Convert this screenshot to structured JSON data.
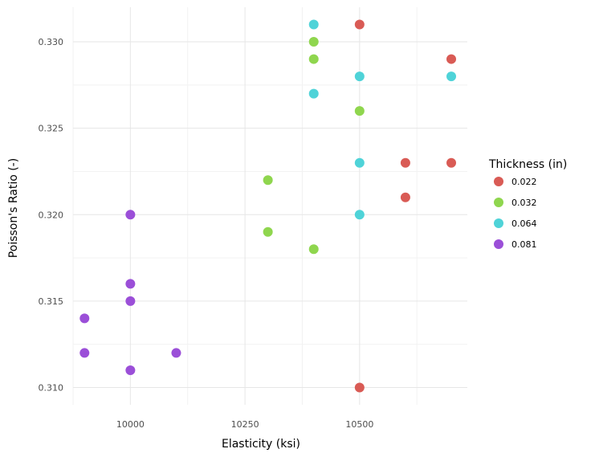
{
  "chart_data": {
    "type": "scatter",
    "title": "",
    "xlabel": "Elasticity (ksi)",
    "ylabel": "Poisson's Ratio (-)",
    "xlim": [
      9875,
      10735
    ],
    "ylim": [
      0.309,
      0.332
    ],
    "x_ticks": [
      10000,
      10250,
      10500
    ],
    "x_tick_labels": [
      "10000",
      "10250",
      "10500"
    ],
    "x_minor_ticks": [
      9875,
      10125,
      10375,
      10625
    ],
    "y_ticks": [
      0.31,
      0.315,
      0.32,
      0.325,
      0.33
    ],
    "y_tick_labels": [
      "0.310",
      "0.315",
      "0.320",
      "0.325",
      "0.330"
    ],
    "y_minor_ticks": [
      0.3125,
      0.3175,
      0.3225,
      0.3275
    ],
    "grid": true,
    "legend": {
      "title": "Thickness (in)",
      "placement": "right"
    },
    "series": [
      {
        "name": "0.022",
        "color": "#d95b55",
        "points": [
          {
            "x": 10500,
            "y": 0.331
          },
          {
            "x": 10700,
            "y": 0.329
          },
          {
            "x": 10600,
            "y": 0.323
          },
          {
            "x": 10700,
            "y": 0.323
          },
          {
            "x": 10600,
            "y": 0.321
          },
          {
            "x": 10500,
            "y": 0.31
          }
        ]
      },
      {
        "name": "0.032",
        "color": "#8fd64e",
        "points": [
          {
            "x": 10400,
            "y": 0.33
          },
          {
            "x": 10400,
            "y": 0.329
          },
          {
            "x": 10500,
            "y": 0.326
          },
          {
            "x": 10300,
            "y": 0.322
          },
          {
            "x": 10300,
            "y": 0.319
          },
          {
            "x": 10400,
            "y": 0.318
          }
        ]
      },
      {
        "name": "0.064",
        "color": "#4fd3d8",
        "points": [
          {
            "x": 10400,
            "y": 0.331
          },
          {
            "x": 10500,
            "y": 0.328
          },
          {
            "x": 10700,
            "y": 0.328
          },
          {
            "x": 10400,
            "y": 0.327
          },
          {
            "x": 10500,
            "y": 0.323
          },
          {
            "x": 10500,
            "y": 0.32
          }
        ]
      },
      {
        "name": "0.081",
        "color": "#9b4fd8",
        "points": [
          {
            "x": 10000,
            "y": 0.32
          },
          {
            "x": 10000,
            "y": 0.316
          },
          {
            "x": 10000,
            "y": 0.315
          },
          {
            "x": 9900,
            "y": 0.314
          },
          {
            "x": 9900,
            "y": 0.312
          },
          {
            "x": 10100,
            "y": 0.312
          },
          {
            "x": 10000,
            "y": 0.311
          }
        ]
      }
    ]
  }
}
